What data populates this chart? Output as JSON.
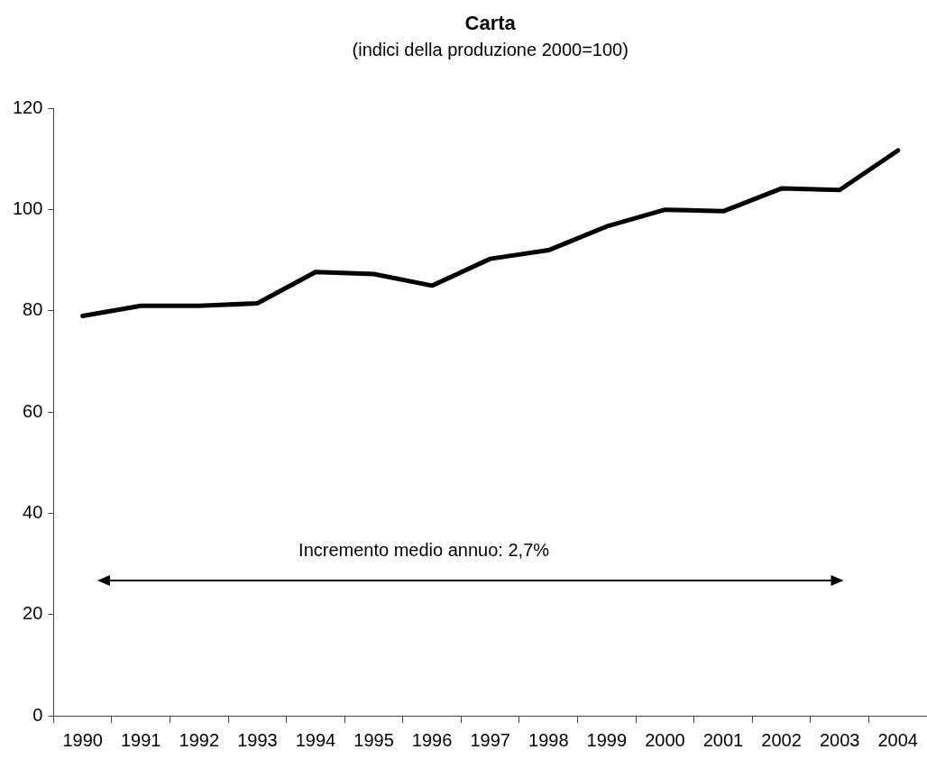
{
  "chart_data": {
    "type": "line",
    "title": "Carta",
    "subtitle": "(indici della produzione 2000=100)",
    "categories": [
      "1990",
      "1991",
      "1992",
      "1993",
      "1994",
      "1995",
      "1996",
      "1997",
      "1998",
      "1999",
      "2000",
      "2001",
      "2002",
      "2003",
      "2004"
    ],
    "series": [
      {
        "color": "#000000",
        "values": [
          79,
          81,
          81,
          81.5,
          87.7,
          87.3,
          85,
          90.3,
          92,
          96.7,
          100,
          99.7,
          104.2,
          103.9,
          111.7
        ]
      }
    ],
    "ylim": [
      0,
      120
    ],
    "yticks": [
      0,
      20,
      40,
      60,
      80,
      100,
      120
    ],
    "marker": "none",
    "line_style": "solid",
    "annotations": [
      "Incremento medio annuo: 2,7%"
    ]
  }
}
